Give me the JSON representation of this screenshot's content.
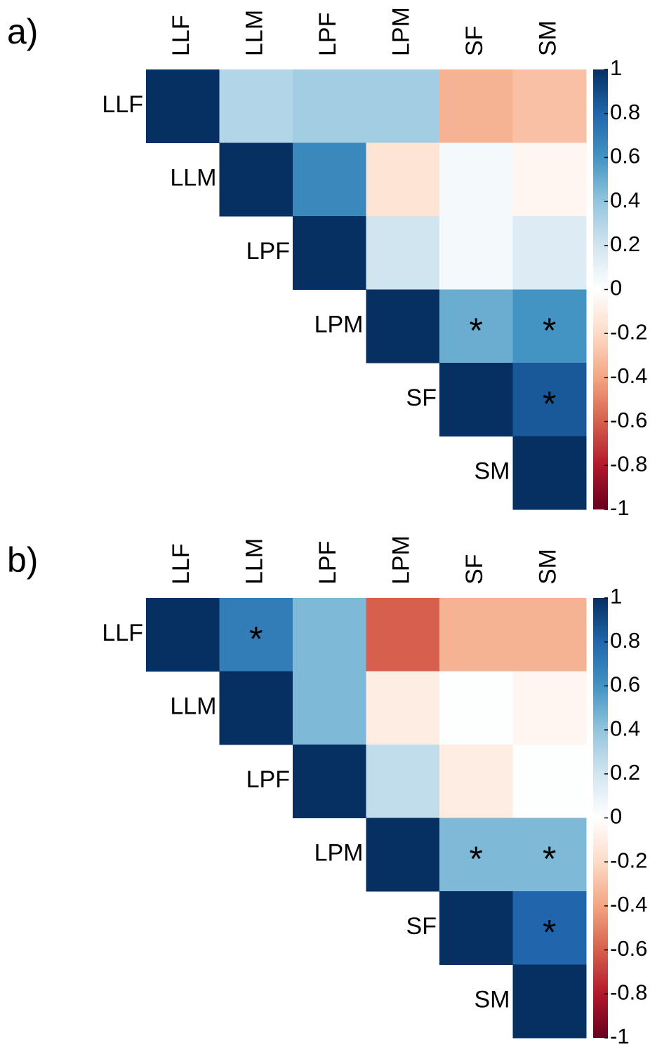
{
  "chart_data": [
    {
      "type": "heatmap",
      "panel": "a)",
      "rows": [
        "LLF",
        "LLM",
        "LPF",
        "LPM",
        "SF",
        "SM"
      ],
      "columns": [
        "LLF",
        "LLM",
        "LPF",
        "LPM",
        "SF",
        "SM"
      ],
      "values": [
        [
          1,
          0.3,
          0.35,
          0.35,
          -0.35,
          -0.3
        ],
        [
          null,
          1,
          0.65,
          -0.15,
          0.05,
          -0.05
        ],
        [
          null,
          null,
          1,
          0.2,
          0.05,
          0.15
        ],
        [
          null,
          null,
          null,
          1,
          0.5,
          0.6
        ],
        [
          null,
          null,
          null,
          null,
          1,
          0.85
        ],
        [
          null,
          null,
          null,
          null,
          null,
          1
        ]
      ],
      "cell_labels": [
        [
          null,
          null,
          null,
          null,
          null,
          null
        ],
        [
          null,
          null,
          null,
          null,
          null,
          null
        ],
        [
          null,
          null,
          null,
          null,
          null,
          null
        ],
        [
          null,
          null,
          null,
          null,
          "*",
          "*"
        ],
        [
          null,
          null,
          null,
          null,
          null,
          "*"
        ],
        [
          null,
          null,
          null,
          null,
          null,
          null
        ]
      ],
      "zlim": [
        -1,
        1
      ],
      "zticks": [
        1,
        0.8,
        0.6,
        0.4,
        0.2,
        0,
        -0.2,
        -0.4,
        -0.6,
        -0.8,
        -1
      ],
      "colorscale": [
        "#67001F",
        "#B2182B",
        "#D6604D",
        "#F4A582",
        "#FDDBC7",
        "#FFFFFF",
        "#D1E5F0",
        "#92C5DE",
        "#4393C3",
        "#2166AC",
        "#053061"
      ]
    },
    {
      "type": "heatmap",
      "panel": "b)",
      "rows": [
        "LLF",
        "LLM",
        "LPF",
        "LPM",
        "SF",
        "SM"
      ],
      "columns": [
        "LLF",
        "LLM",
        "LPF",
        "LPM",
        "SF",
        "SM"
      ],
      "values": [
        [
          1,
          0.7,
          0.45,
          -0.6,
          -0.35,
          -0.35
        ],
        [
          null,
          1,
          0.45,
          -0.1,
          0.01,
          -0.05
        ],
        [
          null,
          null,
          1,
          0.25,
          -0.1,
          0.01
        ],
        [
          null,
          null,
          null,
          1,
          0.45,
          0.45
        ],
        [
          null,
          null,
          null,
          null,
          1,
          0.8
        ],
        [
          null,
          null,
          null,
          null,
          null,
          1
        ]
      ],
      "cell_labels": [
        [
          null,
          "*",
          null,
          null,
          null,
          null
        ],
        [
          null,
          null,
          null,
          null,
          null,
          null
        ],
        [
          null,
          null,
          null,
          null,
          null,
          null
        ],
        [
          null,
          null,
          null,
          null,
          "*",
          "*"
        ],
        [
          null,
          null,
          null,
          null,
          null,
          "*"
        ],
        [
          null,
          null,
          null,
          null,
          null,
          null
        ]
      ],
      "zlim": [
        -1,
        1
      ],
      "zticks": [
        1,
        0.8,
        0.6,
        0.4,
        0.2,
        0,
        -0.2,
        -0.4,
        -0.6,
        -0.8,
        -1
      ],
      "colorscale": [
        "#67001F",
        "#B2182B",
        "#D6604D",
        "#F4A582",
        "#FDDBC7",
        "#FFFFFF",
        "#D1E5F0",
        "#92C5DE",
        "#4393C3",
        "#2166AC",
        "#053061"
      ]
    }
  ]
}
